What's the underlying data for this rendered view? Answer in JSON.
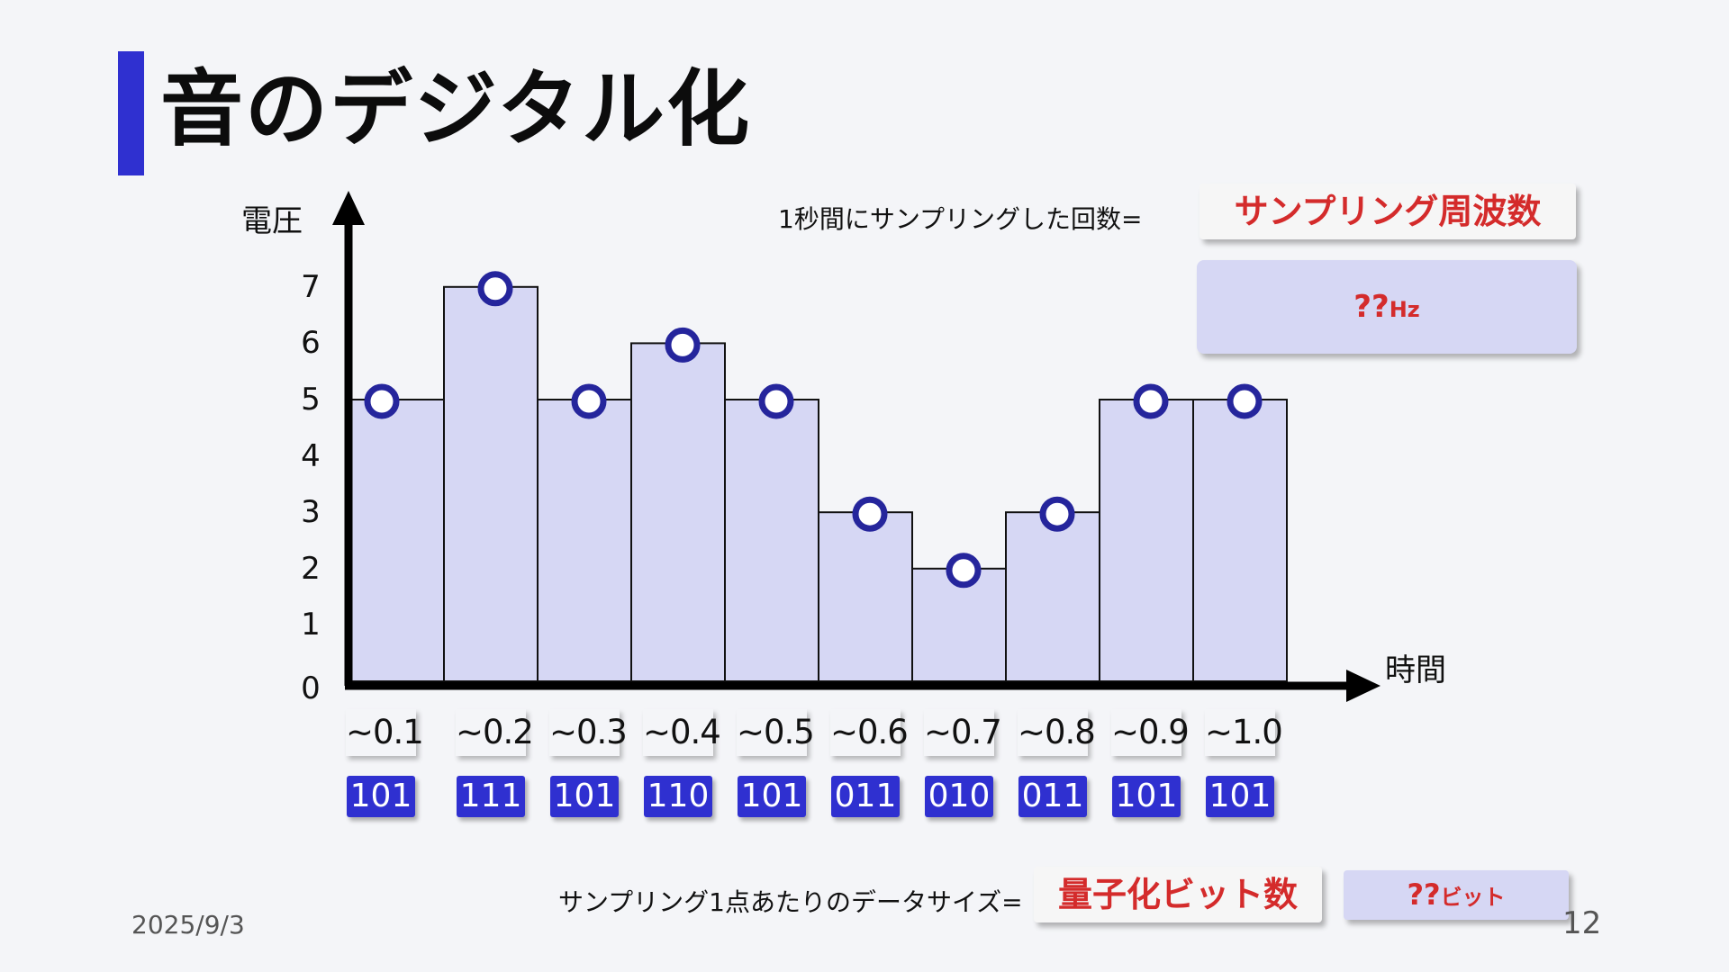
{
  "slide": {
    "title": "音のデジタル化",
    "date": "2025/9/3",
    "page_number": "12"
  },
  "annotations": {
    "sampling_label": "1秒間にサンプリングした回数=",
    "sampling_term": "サンプリング周波数",
    "sampling_value": "??",
    "sampling_unit": "Hz",
    "bits_label": "サンプリング1点あたりのデータサイズ=",
    "bits_term": "量子化ビット数",
    "bits_value": "??",
    "bits_unit": "ビット"
  },
  "colors": {
    "accent": "#2f30d0",
    "bar_fill": "#d6d7f4",
    "point_stroke": "#25259c",
    "highlight_text": "#d42b2b"
  },
  "chart_data": {
    "type": "bar",
    "xlabel": "時間",
    "ylabel": "電圧",
    "ylim": [
      0,
      7
    ],
    "y_ticks": [
      "0",
      "1",
      "2",
      "3",
      "4",
      "5",
      "6",
      "7"
    ],
    "categories": [
      "~0.1",
      "~0.2",
      "~0.3",
      "~0.4",
      "~0.5",
      "~0.6",
      "~0.7",
      "~0.8",
      "~0.9",
      "~1.0"
    ],
    "values": [
      5,
      7,
      5,
      6,
      5,
      3,
      2,
      3,
      5,
      5
    ],
    "binary": [
      "101",
      "111",
      "101",
      "110",
      "101",
      "011",
      "010",
      "011",
      "101",
      "101"
    ],
    "grid": false
  }
}
